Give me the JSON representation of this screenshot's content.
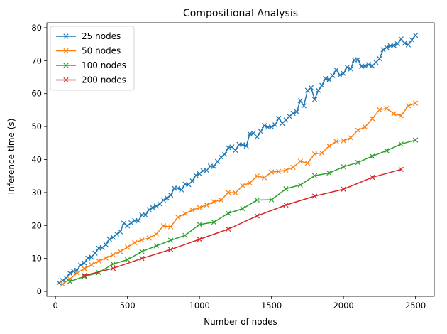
{
  "chart_data": {
    "type": "line",
    "title": "Compositional Analysis",
    "xlabel": "Number of nodes",
    "ylabel": "Inference time (s)",
    "xlim": [
      -60,
      2630
    ],
    "ylim": [
      -1.5,
      81.5
    ],
    "xticks": [
      0,
      500,
      1000,
      1500,
      2000,
      2500
    ],
    "yticks": [
      0,
      10,
      20,
      30,
      40,
      50,
      60,
      70,
      80
    ],
    "grid": false,
    "legend_position": "top-left",
    "marker": "x",
    "series": [
      {
        "name": "25 nodes",
        "color": "#1f77b4",
        "x": [
          25,
          50,
          75,
          100,
          125,
          150,
          175,
          200,
          225,
          250,
          275,
          300,
          325,
          350,
          375,
          400,
          425,
          450,
          475,
          500,
          525,
          550,
          575,
          600,
          625,
          650,
          675,
          700,
          725,
          750,
          775,
          800,
          825,
          850,
          875,
          900,
          925,
          950,
          975,
          1000,
          1025,
          1050,
          1075,
          1100,
          1125,
          1150,
          1175,
          1200,
          1225,
          1250,
          1275,
          1300,
          1325,
          1350,
          1375,
          1400,
          1425,
          1450,
          1475,
          1500,
          1525,
          1550,
          1575,
          1600,
          1625,
          1650,
          1675,
          1700,
          1725,
          1750,
          1775,
          1800,
          1825,
          1850,
          1875,
          1900,
          1925,
          1950,
          1975,
          2000,
          2025,
          2050,
          2075,
          2100,
          2125,
          2150,
          2175,
          2200,
          2225,
          2250,
          2275,
          2300,
          2325,
          2350,
          2375,
          2400,
          2425,
          2450,
          2475,
          2500
        ],
        "y": [
          2.6,
          3.3,
          4.0,
          5.5,
          6.1,
          6.4,
          8.0,
          8.6,
          10.1,
          10.4,
          11.6,
          13.1,
          13.3,
          14.2,
          15.8,
          16.4,
          17.4,
          18.1,
          20.7,
          19.9,
          20.8,
          21.5,
          21.4,
          23.2,
          23.2,
          24.8,
          25.4,
          25.9,
          26.5,
          27.7,
          28.3,
          29.2,
          31.3,
          31.3,
          30.8,
          32.5,
          32.4,
          33.5,
          35.2,
          35.7,
          36.6,
          36.7,
          38.0,
          37.9,
          39.4,
          40.7,
          41.6,
          43.6,
          43.8,
          42.8,
          44.6,
          44.5,
          44.1,
          47.8,
          48.0,
          46.9,
          48.5,
          50.3,
          49.8,
          49.9,
          50.5,
          52.5,
          51.0,
          52.0,
          53.1,
          54.0,
          54.5,
          57.8,
          56.3,
          61.0,
          61.8,
          58.2,
          61.0,
          62.5,
          64.6,
          64.2,
          65.5,
          67.2,
          65.6,
          66.1,
          68.0,
          67.5,
          70.2,
          70.3,
          68.3,
          68.4,
          68.8,
          68.4,
          69.5,
          70.6,
          73.3,
          74.0,
          74.5,
          74.6,
          75.1,
          76.6,
          75.3,
          74.8,
          76.3,
          77.7
        ]
      },
      {
        "name": "50 nodes",
        "color": "#ff7f0e",
        "x": [
          50,
          100,
          150,
          200,
          250,
          300,
          350,
          400,
          450,
          500,
          550,
          600,
          650,
          700,
          750,
          800,
          850,
          900,
          950,
          1000,
          1050,
          1100,
          1150,
          1200,
          1250,
          1300,
          1350,
          1400,
          1450,
          1500,
          1550,
          1600,
          1650,
          1700,
          1750,
          1800,
          1850,
          1900,
          1950,
          2000,
          2050,
          2100,
          2150,
          2200,
          2250,
          2300,
          2350,
          2400,
          2450,
          2500
        ],
        "y": [
          2.2,
          3.7,
          5.6,
          6.9,
          8.1,
          9.2,
          10.1,
          11.1,
          12.1,
          13.4,
          14.8,
          15.6,
          16.2,
          17.4,
          19.9,
          19.6,
          22.5,
          23.6,
          24.7,
          25.4,
          26.2,
          27.2,
          27.7,
          30.0,
          29.9,
          32.1,
          32.9,
          35.0,
          34.5,
          36.2,
          36.4,
          36.8,
          37.6,
          39.5,
          38.9,
          41.7,
          42.0,
          44.1,
          45.5,
          45.7,
          46.6,
          48.9,
          49.9,
          52.4,
          55.1,
          55.5,
          53.9,
          53.3,
          56.3,
          57.1
        ]
      },
      {
        "name": "100 nodes",
        "color": "#2ca02c",
        "x": [
          100,
          200,
          300,
          400,
          500,
          600,
          700,
          800,
          900,
          1000,
          1100,
          1200,
          1300,
          1400,
          1500,
          1600,
          1700,
          1800,
          1900,
          2000,
          2100,
          2200,
          2300,
          2400,
          2500
        ],
        "y": [
          3.0,
          4.5,
          5.7,
          8.3,
          9.6,
          12.1,
          13.8,
          15.5,
          17.0,
          20.3,
          21.0,
          23.7,
          25.1,
          27.7,
          27.8,
          31.1,
          32.3,
          35.1,
          35.9,
          37.8,
          39.1,
          41.0,
          42.7,
          44.7,
          45.9
        ]
      },
      {
        "name": "200 nodes",
        "color": "#d62728",
        "x": [
          200,
          400,
          600,
          800,
          1000,
          1200,
          1400,
          1600,
          1800,
          2000,
          2200,
          2400
        ],
        "y": [
          4.8,
          7.0,
          10.0,
          12.7,
          15.8,
          18.9,
          22.9,
          26.2,
          28.9,
          31.0,
          34.6,
          37.0
        ]
      }
    ]
  }
}
